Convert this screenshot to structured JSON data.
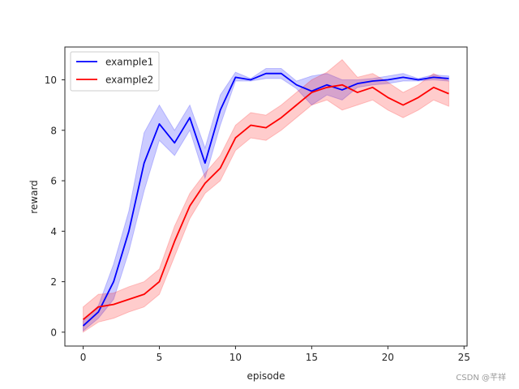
{
  "chart_data": {
    "type": "line",
    "title": "",
    "xlabel": "episode",
    "ylabel": "reward",
    "xlim": [
      -1.2,
      25.2
    ],
    "ylim": [
      -0.55,
      11.3
    ],
    "xticks": [
      0,
      5,
      10,
      15,
      20,
      25
    ],
    "yticks": [
      0,
      2,
      4,
      6,
      8,
      10
    ],
    "grid": false,
    "legend_position": "top-left",
    "x": [
      0,
      1,
      2,
      3,
      4,
      5,
      6,
      7,
      8,
      9,
      10,
      11,
      12,
      13,
      14,
      15,
      16,
      17,
      18,
      19,
      20,
      21,
      22,
      23,
      24
    ],
    "series": [
      {
        "name": "example1",
        "color": "#0000ff",
        "band_color": "#0000ff",
        "values": [
          0.25,
          0.8,
          2.0,
          4.0,
          6.7,
          8.25,
          7.5,
          8.5,
          6.7,
          8.8,
          10.1,
          10.0,
          10.25,
          10.25,
          9.8,
          9.55,
          9.8,
          9.6,
          9.85,
          9.95,
          10.0,
          10.1,
          10.0,
          10.1,
          10.05
        ],
        "lower": [
          0.05,
          0.55,
          1.3,
          3.2,
          5.6,
          7.6,
          7.0,
          8.0,
          6.1,
          8.2,
          9.95,
          9.95,
          10.05,
          10.05,
          9.65,
          9.0,
          9.4,
          9.2,
          9.7,
          9.8,
          9.85,
          9.95,
          9.95,
          10.0,
          9.95
        ],
        "upper": [
          0.45,
          1.05,
          2.7,
          4.8,
          7.9,
          9.0,
          8.0,
          9.0,
          7.3,
          9.4,
          10.3,
          10.05,
          10.45,
          10.45,
          9.95,
          10.15,
          10.25,
          10.0,
          10.0,
          10.05,
          10.15,
          10.25,
          10.05,
          10.2,
          10.15
        ]
      },
      {
        "name": "example2",
        "color": "#ff0000",
        "band_color": "#ff0000",
        "values": [
          0.5,
          1.0,
          1.1,
          1.3,
          1.5,
          2.0,
          3.6,
          5.0,
          5.9,
          6.5,
          7.7,
          8.2,
          8.1,
          8.5,
          9.0,
          9.5,
          9.7,
          9.8,
          9.5,
          9.7,
          9.3,
          9.0,
          9.3,
          9.7,
          9.45
        ],
        "lower": [
          0.0,
          0.4,
          0.55,
          0.8,
          1.0,
          1.5,
          3.0,
          4.5,
          5.5,
          6.0,
          7.2,
          7.7,
          7.6,
          8.0,
          8.5,
          9.0,
          9.2,
          8.8,
          9.0,
          9.2,
          8.8,
          8.5,
          8.8,
          9.2,
          8.95
        ],
        "upper": [
          1.0,
          1.5,
          1.55,
          1.8,
          2.0,
          2.5,
          4.2,
          5.5,
          6.3,
          7.0,
          8.2,
          8.7,
          8.6,
          9.0,
          9.5,
          10.0,
          10.3,
          10.8,
          10.1,
          10.25,
          9.9,
          9.5,
          9.8,
          10.25,
          9.95
        ]
      }
    ]
  },
  "watermark": "CSDN @芊祥"
}
